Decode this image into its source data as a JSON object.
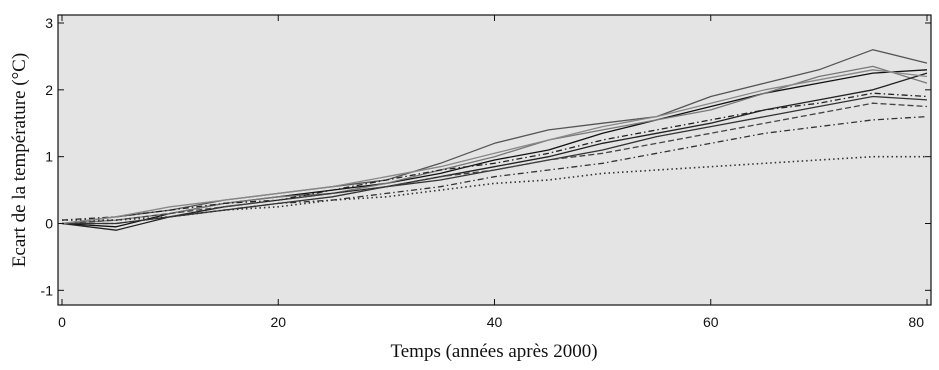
{
  "chart_data": {
    "type": "line",
    "title": "",
    "xlabel": "Temps (années après 2000)",
    "ylabel": "Ecart de la température  (°C)",
    "xlim": [
      0,
      80
    ],
    "ylim": [
      -1.1,
      3.0
    ],
    "xticks": [
      0,
      20,
      40,
      60,
      80
    ],
    "xtick_labels": [
      "0",
      "20",
      "40",
      "60",
      "80"
    ],
    "yticks": [
      -1,
      0,
      1,
      2,
      3
    ],
    "ytick_labels": [
      "-1",
      "0",
      "1",
      "2",
      "3"
    ],
    "grid": false,
    "legend": "none",
    "x": [
      0,
      5,
      10,
      15,
      20,
      25,
      30,
      35,
      40,
      45,
      50,
      55,
      60,
      65,
      70,
      75,
      80
    ],
    "series": [
      {
        "values": [
          0.0,
          -0.05,
          0.15,
          0.3,
          0.4,
          0.5,
          0.6,
          0.75,
          0.95,
          1.1,
          1.35,
          1.55,
          1.75,
          1.95,
          2.1,
          2.25,
          2.3
        ],
        "style": "solid",
        "color": "#111111"
      },
      {
        "values": [
          0.0,
          0.1,
          0.2,
          0.35,
          0.45,
          0.55,
          0.65,
          0.9,
          1.2,
          1.4,
          1.5,
          1.6,
          1.9,
          2.1,
          2.3,
          2.6,
          2.4
        ],
        "style": "solid",
        "color": "#555555"
      },
      {
        "values": [
          0.0,
          0.05,
          0.15,
          0.3,
          0.4,
          0.45,
          0.6,
          0.8,
          1.0,
          1.25,
          1.4,
          1.55,
          1.7,
          1.95,
          2.2,
          2.35,
          2.1
        ],
        "style": "solid",
        "color": "#777777"
      },
      {
        "values": [
          0.0,
          -0.1,
          0.1,
          0.25,
          0.35,
          0.45,
          0.55,
          0.7,
          0.85,
          1.0,
          1.2,
          1.35,
          1.5,
          1.7,
          1.85,
          2.0,
          2.25
        ],
        "style": "solid",
        "color": "#222222"
      },
      {
        "values": [
          0.0,
          0.0,
          0.1,
          0.2,
          0.3,
          0.4,
          0.55,
          0.65,
          0.8,
          0.95,
          1.1,
          1.3,
          1.45,
          1.6,
          1.75,
          1.9,
          1.85
        ],
        "style": "solid",
        "color": "#333333"
      },
      {
        "values": [
          0.05,
          0.1,
          0.2,
          0.3,
          0.35,
          0.5,
          0.65,
          0.8,
          0.9,
          1.05,
          1.25,
          1.4,
          1.55,
          1.7,
          1.8,
          1.95,
          1.9
        ],
        "style": "dashdot",
        "color": "#222222"
      },
      {
        "values": [
          0.0,
          0.05,
          0.15,
          0.25,
          0.35,
          0.45,
          0.55,
          0.7,
          0.8,
          0.95,
          1.05,
          1.2,
          1.35,
          1.5,
          1.65,
          1.8,
          1.75
        ],
        "style": "dashed",
        "color": "#444444"
      },
      {
        "values": [
          0.0,
          0.0,
          0.1,
          0.2,
          0.3,
          0.35,
          0.45,
          0.55,
          0.7,
          0.8,
          0.9,
          1.05,
          1.2,
          1.35,
          1.45,
          1.55,
          1.6
        ],
        "style": "dashdot",
        "color": "#333333"
      },
      {
        "values": [
          0.05,
          0.05,
          0.1,
          0.2,
          0.25,
          0.35,
          0.4,
          0.5,
          0.6,
          0.65,
          0.75,
          0.8,
          0.85,
          0.9,
          0.95,
          1.0,
          1.0
        ],
        "style": "dotted",
        "color": "#333333"
      },
      {
        "values": [
          0.0,
          0.1,
          0.25,
          0.35,
          0.45,
          0.55,
          0.7,
          0.85,
          1.05,
          1.25,
          1.45,
          1.6,
          1.8,
          2.0,
          2.15,
          2.3,
          2.2
        ],
        "style": "solid",
        "color": "#888888"
      }
    ]
  }
}
